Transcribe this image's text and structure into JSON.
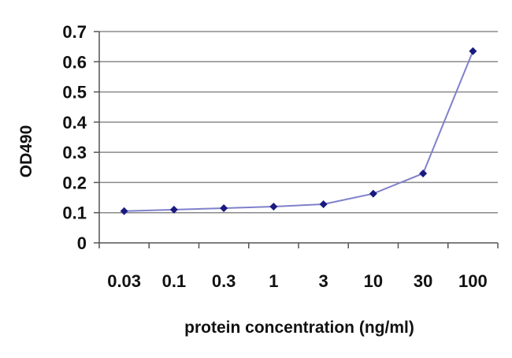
{
  "chart_data": {
    "type": "line",
    "title": "",
    "xlabel": "protein concentration (ng/ml)",
    "ylabel": "OD490",
    "categories": [
      "0.03",
      "0.1",
      "0.3",
      "1",
      "3",
      "10",
      "30",
      "100"
    ],
    "series": [
      {
        "values": [
          0.105,
          0.11,
          0.115,
          0.12,
          0.128,
          0.163,
          0.23,
          0.635
        ]
      }
    ],
    "ylim": [
      0,
      0.7
    ],
    "yticks": [
      "0",
      "0.1",
      "0.2",
      "0.3",
      "0.4",
      "0.5",
      "0.6",
      "0.7"
    ],
    "grid": true,
    "legend": "none",
    "colors": {
      "line": "#8080cc",
      "marker": "#1a1a80",
      "grid": "#8a8a8a",
      "axis": "#555555"
    }
  }
}
